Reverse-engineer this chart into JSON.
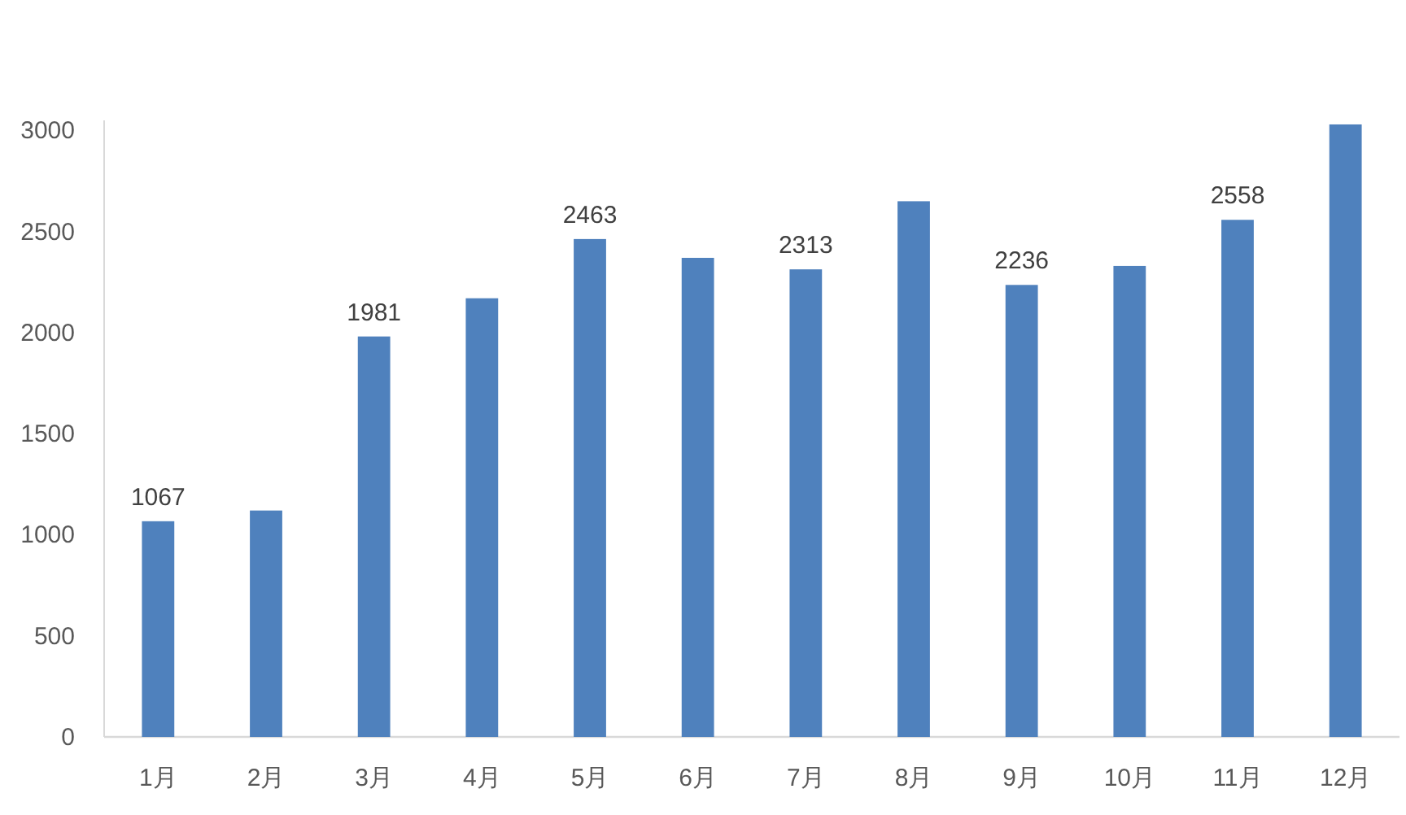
{
  "chart_data": {
    "type": "bar",
    "categories": [
      "1月",
      "2月",
      "3月",
      "4月",
      "5月",
      "6月",
      "7月",
      "8月",
      "9月",
      "10月",
      "11月",
      "12月"
    ],
    "values": [
      1067,
      1120,
      1981,
      2170,
      2463,
      2370,
      2313,
      2650,
      2236,
      2330,
      2558,
      3030
    ],
    "value_labels": [
      "1067",
      null,
      "1981",
      null,
      "2463",
      null,
      "2313",
      null,
      "2236",
      null,
      "2558",
      null
    ],
    "color": "#4f81bd",
    "ylim": [
      0,
      3050
    ],
    "yticks": [
      0,
      500,
      1000,
      1500,
      2000,
      2500,
      3000
    ]
  }
}
